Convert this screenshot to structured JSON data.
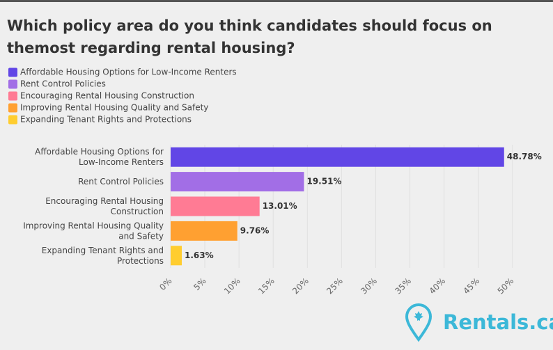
{
  "chart_data": {
    "type": "hbar",
    "title": "Which policy area do you think candidates should focus on the most regarding rental housing?",
    "categories": [
      "Affordable Housing Options for Low-Income Renters",
      "Rent Control Policies",
      "Encouraging Rental Housing Construction",
      "Improving Rental Housing Quality and Safety",
      "Expanding Tenant Rights and Protections"
    ],
    "values": [
      48.78,
      19.51,
      13.01,
      9.76,
      1.63
    ],
    "value_labels": [
      "48.78%",
      "19.51%",
      "13.01%",
      "9.76%",
      "1.63%"
    ],
    "colors": [
      "#6146e6",
      "#a26ee6",
      "#ff7b94",
      "#ffa031",
      "#ffcd2f"
    ],
    "xlim": [
      0,
      54
    ],
    "xticks": [
      {
        "value": 0,
        "label": "0%"
      },
      {
        "value": 5,
        "label": "5%"
      },
      {
        "value": 10,
        "label": "10%"
      },
      {
        "value": 15,
        "label": "15%"
      },
      {
        "value": 20,
        "label": "20%"
      },
      {
        "value": 25,
        "label": "25%"
      },
      {
        "value": 30,
        "label": "30%"
      },
      {
        "value": 35,
        "label": "35%"
      },
      {
        "value": 40,
        "label": "40%"
      },
      {
        "value": 45,
        "label": "45%"
      },
      {
        "value": 50,
        "label": "50%"
      }
    ],
    "grid": true,
    "legend": "top-left"
  },
  "logo": {
    "text": "Rentals.ca"
  }
}
